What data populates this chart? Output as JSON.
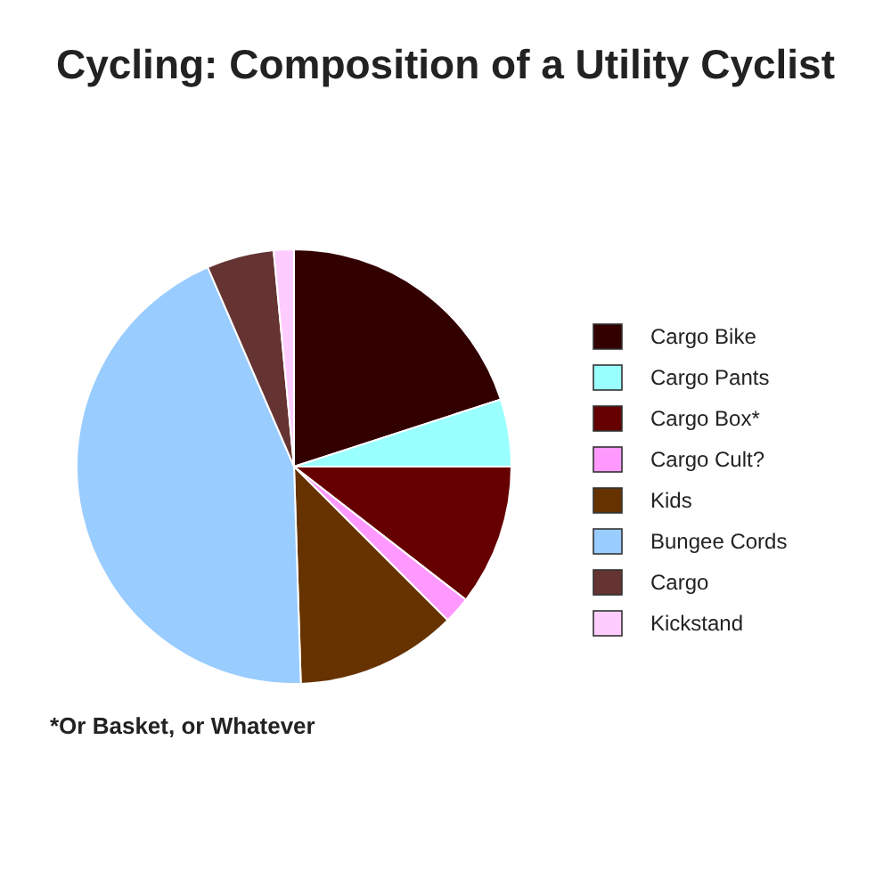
{
  "chart_data": {
    "type": "pie",
    "title": "Cycling: Composition of a Utility Cyclist",
    "categories": [
      "Cargo Bike",
      "Cargo Pants",
      "Cargo Box*",
      "Cargo Cult?",
      "Kids",
      "Bungee Cords",
      "Cargo",
      "Kickstand"
    ],
    "values": [
      20,
      5,
      10.5,
      2,
      12,
      44,
      5,
      1.5
    ],
    "colors": [
      "#330000",
      "#99ffff",
      "#660000",
      "#ff99ff",
      "#663300",
      "#99ccff",
      "#663333",
      "#ffccff"
    ],
    "legend": "right",
    "annotations": [
      "*Or Basket, or Whatever"
    ]
  }
}
